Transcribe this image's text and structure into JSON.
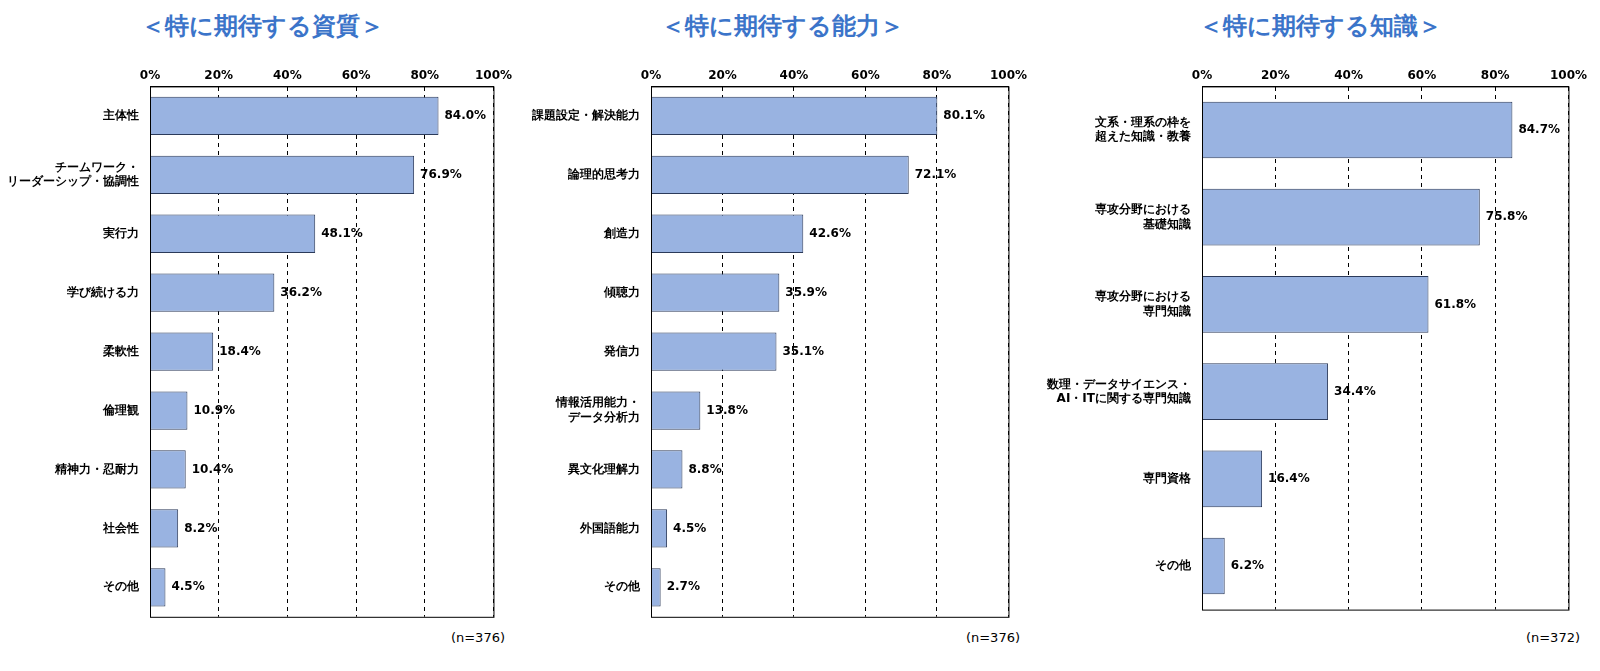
{
  "chart_data": [
    {
      "type": "bar",
      "orientation": "horizontal",
      "title": "＜特に期待する資質＞",
      "annotation": "(n=376)",
      "categories": [
        "主体性",
        [
          "チームワーク・",
          "リーダーシップ・協調性"
        ],
        "実行力",
        "学び続ける力",
        "柔軟性",
        "倫理観",
        "精神力・忍耐力",
        "社会性",
        "その他"
      ],
      "values": [
        84.0,
        76.9,
        48.1,
        36.2,
        18.4,
        10.9,
        10.4,
        8.2,
        4.5
      ],
      "value_labels": [
        "84.0%",
        "76.9%",
        "48.1%",
        "36.2%",
        "18.4%",
        "10.9%",
        "10.4%",
        "8.2%",
        "4.5%"
      ],
      "color": "#99b3e1",
      "data_labels": true,
      "grid": true,
      "xlim": [
        0,
        100
      ],
      "xticks": [
        {
          "value": 0,
          "label": "0%"
        },
        {
          "value": 20,
          "label": "20%"
        },
        {
          "value": 40,
          "label": "40%"
        },
        {
          "value": 60,
          "label": "60%"
        },
        {
          "value": 80,
          "label": "80%"
        },
        {
          "value": 100,
          "label": "100%"
        }
      ]
    },
    {
      "type": "bar",
      "orientation": "horizontal",
      "title": "＜特に期待する能力＞",
      "annotation": "(n=376)",
      "categories": [
        "課題設定・解決能力",
        "論理的思考力",
        "創造力",
        "傾聴力",
        "発信力",
        [
          "情報活用能力・",
          "データ分析力"
        ],
        "異文化理解力",
        "外国語能力",
        "その他"
      ],
      "values": [
        80.1,
        72.1,
        42.6,
        35.9,
        35.1,
        13.8,
        8.8,
        4.5,
        2.7
      ],
      "value_labels": [
        "80.1%",
        "72.1%",
        "42.6%",
        "35.9%",
        "35.1%",
        "13.8%",
        "8.8%",
        "4.5%",
        "2.7%"
      ],
      "color": "#99b3e1",
      "data_labels": true,
      "grid": true,
      "xlim": [
        0,
        100
      ],
      "xticks": [
        {
          "value": 0,
          "label": "0%"
        },
        {
          "value": 20,
          "label": "20%"
        },
        {
          "value": 40,
          "label": "40%"
        },
        {
          "value": 60,
          "label": "60%"
        },
        {
          "value": 80,
          "label": "80%"
        },
        {
          "value": 100,
          "label": "100%"
        }
      ]
    },
    {
      "type": "bar",
      "orientation": "horizontal",
      "title": "＜特に期待する知識＞",
      "annotation": "(n=372)",
      "categories": [
        [
          "文系・理系の枠を",
          "超えた知識・教養"
        ],
        [
          "専攻分野における",
          "基礎知識"
        ],
        [
          "専攻分野における",
          "専門知識"
        ],
        [
          "数理・データサイエンス・",
          "AI・ITに関する専門知識"
        ],
        "専門資格",
        "その他"
      ],
      "values": [
        84.7,
        75.8,
        61.8,
        34.4,
        16.4,
        6.2
      ],
      "value_labels": [
        "84.7%",
        "75.8%",
        "61.8%",
        "34.4%",
        "16.4%",
        "6.2%"
      ],
      "color": "#99b3e1",
      "data_labels": true,
      "grid": true,
      "xlim": [
        0,
        100
      ],
      "xticks": [
        {
          "value": 0,
          "label": "0%"
        },
        {
          "value": 20,
          "label": "20%"
        },
        {
          "value": 40,
          "label": "40%"
        },
        {
          "value": 60,
          "label": "60%"
        },
        {
          "value": 80,
          "label": "80%"
        },
        {
          "value": 100,
          "label": "100%"
        }
      ]
    }
  ]
}
